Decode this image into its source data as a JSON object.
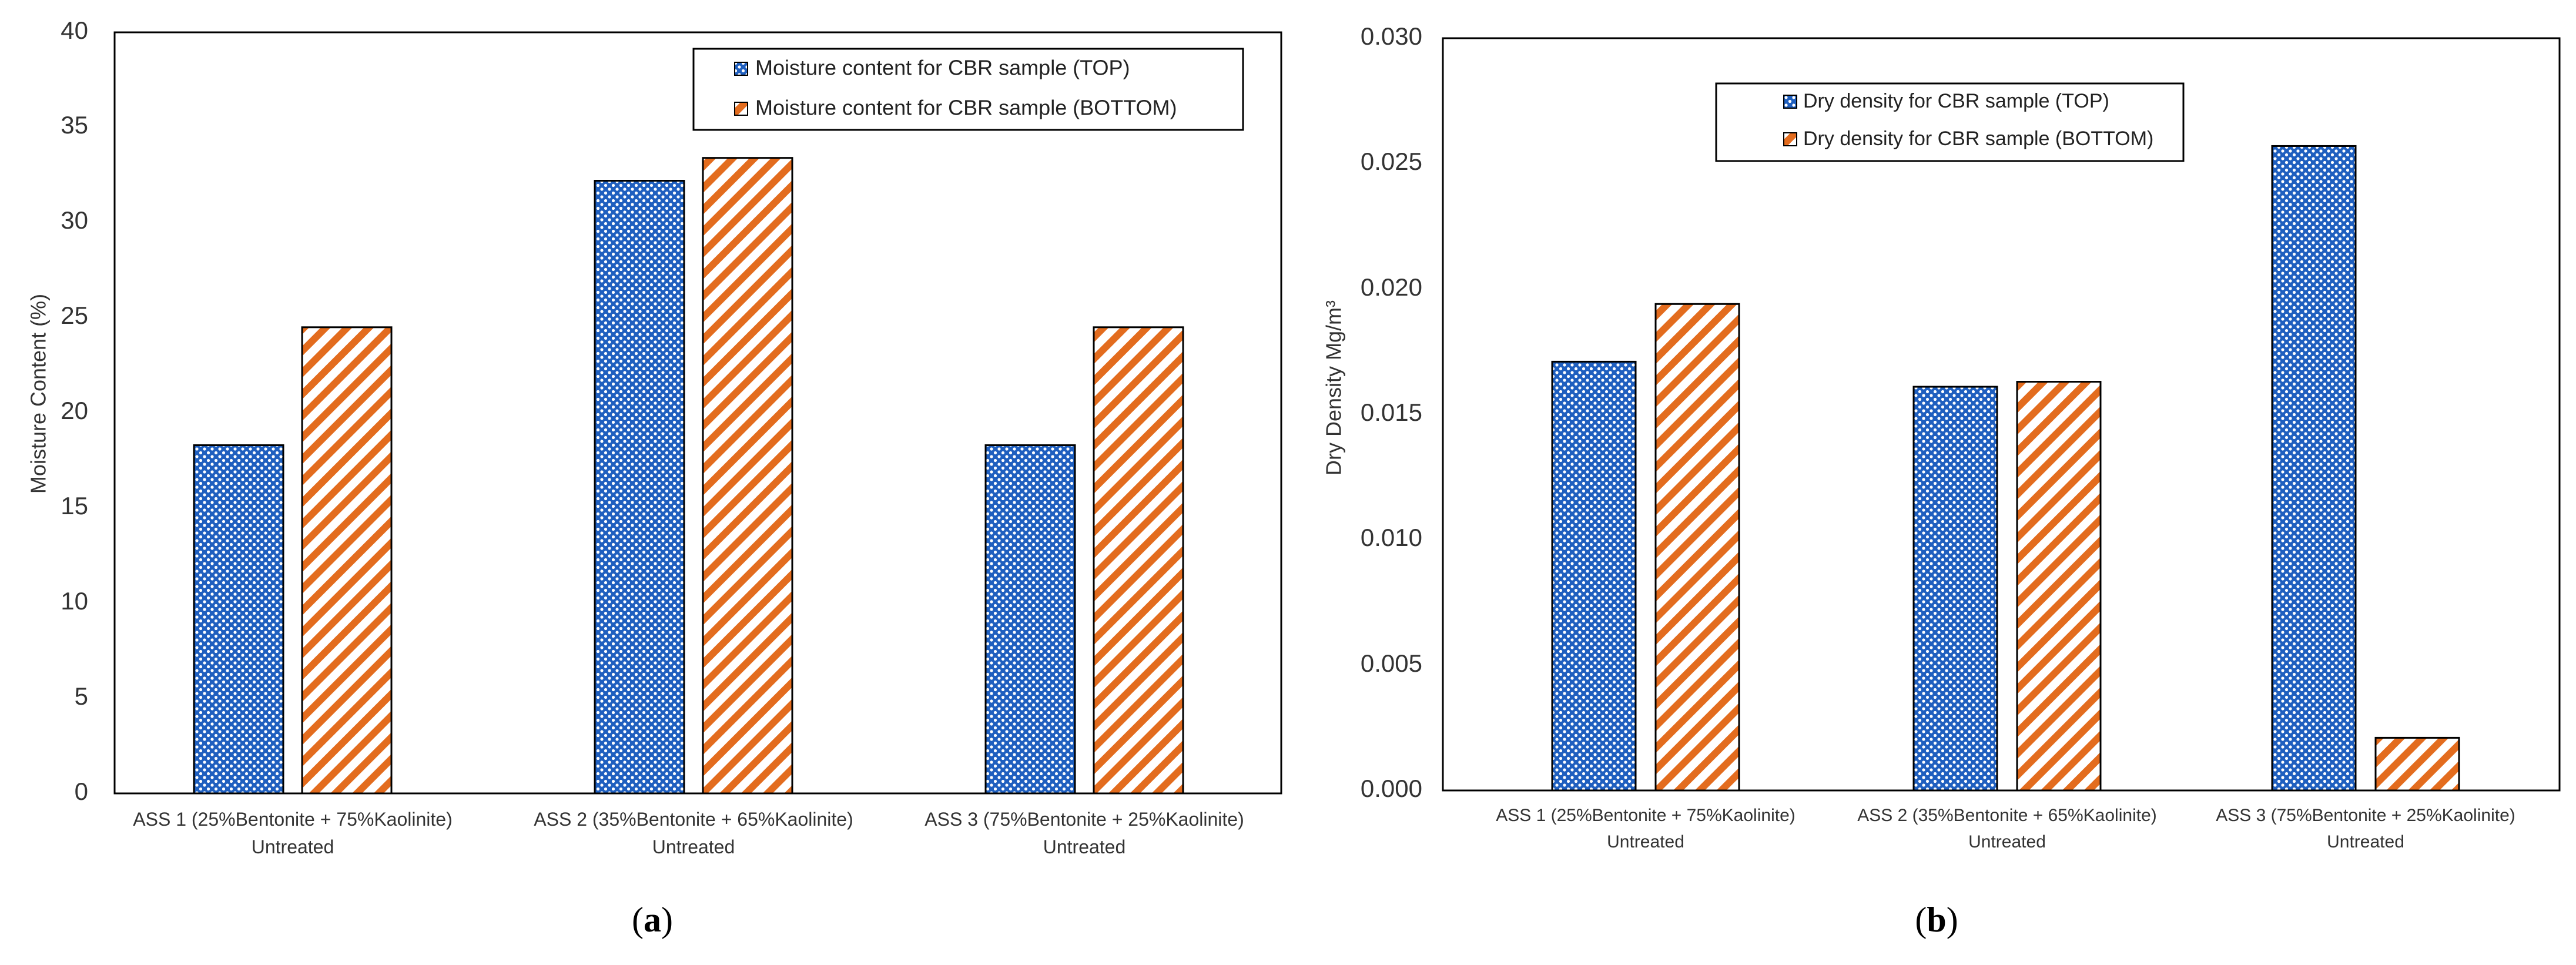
{
  "figure": {
    "panel_a_caption": {
      "open": "(",
      "letter": "a",
      "close": ")"
    },
    "panel_b_caption": {
      "open": "(",
      "letter": "b",
      "close": ")"
    }
  },
  "colors": {
    "top_series": "#1f5fbf",
    "top_series_dot": "#ffffff",
    "bottom_series": "#e36c1e",
    "bottom_series_bg": "#ffffff",
    "axis": "#000000",
    "text": "#333333"
  },
  "chart_data": [
    {
      "type": "bar",
      "title": "",
      "xlabel": "",
      "ylabel": "Moisture Content (%)",
      "ylim": [
        0,
        40
      ],
      "yticks": [
        "0",
        "5",
        "10",
        "15",
        "20",
        "25",
        "30",
        "35",
        "40"
      ],
      "yticks_values": [
        0,
        5,
        10,
        15,
        20,
        25,
        30,
        35,
        40
      ],
      "categories": [
        [
          "ASS 1 (25%Bentonite + 75%Kaolinite)",
          "Untreated"
        ],
        [
          "ASS 2 (35%Bentonite + 65%Kaolinite)",
          "Untreated"
        ],
        [
          "ASS 3 (75%Bentonite + 25%Kaolinite)",
          "Untreated"
        ]
      ],
      "series": [
        {
          "name": "Moisture content for CBR sample (TOP)",
          "values": [
            18.3,
            32.2,
            18.3
          ],
          "pattern": "dots"
        },
        {
          "name": "Moisture content for CBR sample (BOTTOM)",
          "values": [
            24.5,
            33.4,
            24.5
          ],
          "pattern": "hatch"
        }
      ],
      "legend": "top-right",
      "grid": false
    },
    {
      "type": "bar",
      "title": "",
      "xlabel": "",
      "ylabel": "Dry Density Mg/m³",
      "ylim": [
        0,
        0.03
      ],
      "yticks": [
        "0.000",
        "0.005",
        "0.010",
        "0.015",
        "0.020",
        "0.025",
        "0.030"
      ],
      "yticks_values": [
        0,
        0.005,
        0.01,
        0.015,
        0.02,
        0.025,
        0.03
      ],
      "categories": [
        [
          "ASS 1 (25%Bentonite + 75%Kaolinite)",
          "Untreated"
        ],
        [
          "ASS 2 (35%Bentonite + 65%Kaolinite)",
          "Untreated"
        ],
        [
          "ASS 3 (75%Bentonite + 25%Kaolinite)",
          "Untreated"
        ]
      ],
      "series": [
        {
          "name": "Dry density for CBR sample (TOP)",
          "values": [
            0.0171,
            0.0161,
            0.0257
          ],
          "pattern": "dots"
        },
        {
          "name": "Dry density for CBR sample (BOTTOM)",
          "values": [
            0.0194,
            0.0163,
            0.0021
          ],
          "pattern": "hatch"
        }
      ],
      "legend": "top-center",
      "grid": false
    }
  ]
}
